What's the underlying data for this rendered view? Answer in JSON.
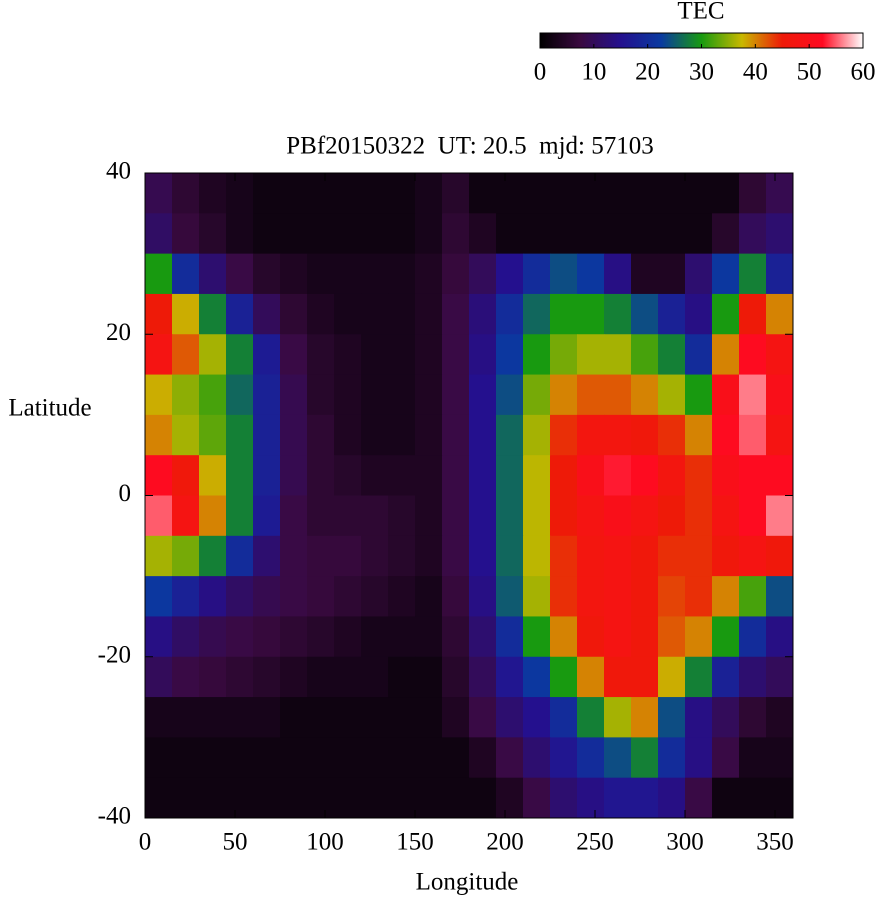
{
  "chart_data": {
    "type": "heatmap",
    "title": "PBf20150322  UT: 20.5  mjd: 57103",
    "x_label": "Longitude",
    "y_label": "Latitude",
    "x": [
      7.5,
      22.5,
      37.5,
      52.5,
      67.5,
      82.5,
      97.5,
      112.5,
      127.5,
      142.5,
      157.5,
      172.5,
      187.5,
      202.5,
      217.5,
      232.5,
      247.5,
      262.5,
      277.5,
      292.5,
      307.5,
      322.5,
      337.5,
      352.5
    ],
    "y": [
      37.5,
      32.5,
      27.5,
      22.5,
      17.5,
      12.5,
      7.5,
      2.5,
      -2.5,
      -7.5,
      -12.5,
      -17.5,
      -22.5,
      -27.5,
      -32.5,
      -37.5
    ],
    "values": [
      [
        9,
        6,
        4,
        3,
        2,
        2,
        2,
        2,
        2,
        2,
        3,
        5,
        2,
        2,
        2,
        2,
        2,
        2,
        2,
        2,
        2,
        2,
        6,
        9
      ],
      [
        11,
        7,
        5,
        3,
        2,
        2,
        2,
        2,
        2,
        2,
        3,
        6,
        4,
        2,
        2,
        2,
        2,
        2,
        2,
        2,
        2,
        5,
        10,
        12
      ],
      [
        30,
        20,
        12,
        8,
        5,
        4,
        3,
        3,
        3,
        3,
        4,
        7,
        10,
        15,
        20,
        24,
        22,
        14,
        4,
        4,
        12,
        22,
        28,
        18
      ],
      [
        45,
        38,
        28,
        18,
        10,
        6,
        4,
        3,
        3,
        3,
        4,
        8,
        13,
        20,
        26,
        30,
        30,
        28,
        24,
        18,
        14,
        30,
        45,
        40
      ],
      [
        48,
        42,
        36,
        28,
        17,
        8,
        5,
        4,
        3,
        3,
        4,
        8,
        14,
        22,
        30,
        34,
        36,
        36,
        32,
        28,
        20,
        40,
        52,
        48
      ],
      [
        38,
        35,
        32,
        26,
        18,
        9,
        5,
        4,
        3,
        3,
        4,
        8,
        15,
        24,
        34,
        40,
        42,
        42,
        40,
        36,
        30,
        50,
        56,
        50
      ],
      [
        40,
        36,
        33,
        28,
        18,
        9,
        6,
        4,
        3,
        3,
        4,
        8,
        15,
        26,
        36,
        44,
        47,
        47,
        46,
        44,
        40,
        52,
        55,
        48
      ],
      [
        52,
        46,
        38,
        28,
        18,
        9,
        6,
        5,
        4,
        4,
        4,
        8,
        15,
        26,
        37,
        45,
        50,
        53,
        52,
        47,
        44,
        50,
        52,
        52
      ],
      [
        55,
        48,
        40,
        28,
        17,
        8,
        6,
        6,
        6,
        5,
        4,
        8,
        15,
        26,
        37,
        45,
        48,
        50,
        48,
        45,
        44,
        48,
        52,
        56
      ],
      [
        36,
        34,
        28,
        20,
        12,
        8,
        7,
        7,
        6,
        5,
        4,
        8,
        15,
        26,
        37,
        44,
        47,
        48,
        46,
        44,
        44,
        46,
        48,
        46
      ],
      [
        22,
        18,
        14,
        11,
        9,
        8,
        7,
        6,
        5,
        4,
        3,
        7,
        14,
        25,
        36,
        44,
        47,
        48,
        46,
        43,
        44,
        40,
        32,
        24
      ],
      [
        14,
        11,
        9,
        8,
        7,
        6,
        5,
        4,
        3,
        3,
        3,
        6,
        12,
        20,
        30,
        40,
        46,
        48,
        46,
        42,
        40,
        30,
        20,
        14
      ],
      [
        10,
        8,
        7,
        6,
        5,
        4,
        3,
        3,
        3,
        2,
        2,
        5,
        10,
        16,
        22,
        30,
        40,
        46,
        46,
        38,
        28,
        18,
        12,
        10
      ],
      [
        3,
        3,
        3,
        3,
        3,
        2,
        2,
        2,
        2,
        2,
        2,
        4,
        8,
        12,
        15,
        20,
        28,
        36,
        40,
        24,
        14,
        10,
        6,
        4
      ],
      [
        2,
        2,
        2,
        2,
        2,
        2,
        2,
        2,
        2,
        2,
        2,
        2,
        4,
        8,
        12,
        16,
        20,
        24,
        28,
        20,
        14,
        8,
        3,
        3
      ],
      [
        2,
        2,
        2,
        2,
        2,
        2,
        2,
        2,
        2,
        2,
        2,
        2,
        2,
        4,
        8,
        12,
        14,
        16,
        16,
        14,
        8,
        2,
        2,
        2
      ]
    ],
    "xlim": [
      0,
      360
    ],
    "ylim": [
      -40,
      40
    ],
    "xticks": [
      0,
      50,
      100,
      150,
      200,
      250,
      300,
      350
    ],
    "yticks": [
      -40,
      -20,
      0,
      20,
      40
    ],
    "colorbar": {
      "label": "TEC",
      "lim": [
        0,
        60
      ],
      "ticks": [
        0,
        10,
        20,
        30,
        40,
        50,
        60
      ]
    },
    "colormap": [
      "#000000",
      "#3a0a40",
      "#24108e",
      "#0a3aa0",
      "#189a10",
      "#c8b800",
      "#ee1a08",
      "#ff0a22",
      "#ffffff"
    ]
  }
}
